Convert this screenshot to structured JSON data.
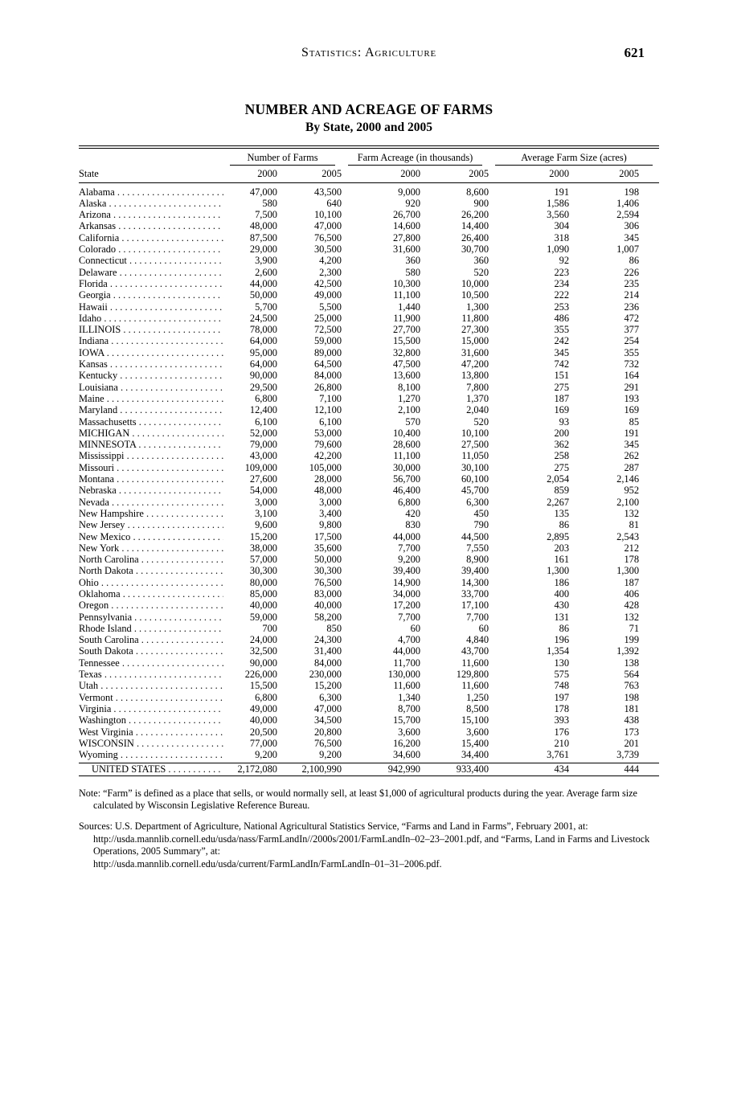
{
  "header": {
    "title": "Statistics: Agriculture",
    "page_number": "621"
  },
  "title": {
    "line1": "NUMBER AND ACREAGE OF FARMS",
    "line2": "By State, 2000 and 2005"
  },
  "table": {
    "state_header": "State",
    "group_headers": [
      "Number of Farms",
      "Farm Acreage (in thousands)",
      "Average Farm Size (acres)"
    ],
    "year_headers": [
      "2000",
      "2005",
      "2000",
      "2005",
      "2000",
      "2005"
    ],
    "rows": [
      {
        "state": "Alabama",
        "values": [
          "47,000",
          "43,500",
          "9,000",
          "8,600",
          "191",
          "198"
        ]
      },
      {
        "state": "Alaska",
        "values": [
          "580",
          "640",
          "920",
          "900",
          "1,586",
          "1,406"
        ]
      },
      {
        "state": "Arizona",
        "values": [
          "7,500",
          "10,100",
          "26,700",
          "26,200",
          "3,560",
          "2,594"
        ]
      },
      {
        "state": "Arkansas",
        "values": [
          "48,000",
          "47,000",
          "14,600",
          "14,400",
          "304",
          "306"
        ]
      },
      {
        "state": "California",
        "values": [
          "87,500",
          "76,500",
          "27,800",
          "26,400",
          "318",
          "345"
        ]
      },
      {
        "state": "Colorado",
        "values": [
          "29,000",
          "30,500",
          "31,600",
          "30,700",
          "1,090",
          "1,007"
        ]
      },
      {
        "state": "Connecticut",
        "values": [
          "3,900",
          "4,200",
          "360",
          "360",
          "92",
          "86"
        ]
      },
      {
        "state": "Delaware",
        "values": [
          "2,600",
          "2,300",
          "580",
          "520",
          "223",
          "226"
        ]
      },
      {
        "state": "Florida",
        "values": [
          "44,000",
          "42,500",
          "10,300",
          "10,000",
          "234",
          "235"
        ]
      },
      {
        "state": "Georgia",
        "values": [
          "50,000",
          "49,000",
          "11,100",
          "10,500",
          "222",
          "214"
        ]
      },
      {
        "state": "Hawaii",
        "values": [
          "5,700",
          "5,500",
          "1,440",
          "1,300",
          "253",
          "236"
        ]
      },
      {
        "state": "Idaho",
        "values": [
          "24,500",
          "25,000",
          "11,900",
          "11,800",
          "486",
          "472"
        ]
      },
      {
        "state": "ILLINOIS",
        "values": [
          "78,000",
          "72,500",
          "27,700",
          "27,300",
          "355",
          "377"
        ]
      },
      {
        "state": "Indiana",
        "values": [
          "64,000",
          "59,000",
          "15,500",
          "15,000",
          "242",
          "254"
        ]
      },
      {
        "state": "IOWA",
        "values": [
          "95,000",
          "89,000",
          "32,800",
          "31,600",
          "345",
          "355"
        ]
      },
      {
        "state": "Kansas",
        "values": [
          "64,000",
          "64,500",
          "47,500",
          "47,200",
          "742",
          "732"
        ]
      },
      {
        "state": "Kentucky",
        "values": [
          "90,000",
          "84,000",
          "13,600",
          "13,800",
          "151",
          "164"
        ]
      },
      {
        "state": "Louisiana",
        "values": [
          "29,500",
          "26,800",
          "8,100",
          "7,800",
          "275",
          "291"
        ]
      },
      {
        "state": "Maine",
        "values": [
          "6,800",
          "7,100",
          "1,270",
          "1,370",
          "187",
          "193"
        ]
      },
      {
        "state": "Maryland",
        "values": [
          "12,400",
          "12,100",
          "2,100",
          "2,040",
          "169",
          "169"
        ]
      },
      {
        "state": "Massachusetts",
        "values": [
          "6,100",
          "6,100",
          "570",
          "520",
          "93",
          "85"
        ]
      },
      {
        "state": "MICHIGAN",
        "values": [
          "52,000",
          "53,000",
          "10,400",
          "10,100",
          "200",
          "191"
        ]
      },
      {
        "state": "MINNESOTA",
        "values": [
          "79,000",
          "79,600",
          "28,600",
          "27,500",
          "362",
          "345"
        ]
      },
      {
        "state": "Mississippi",
        "values": [
          "43,000",
          "42,200",
          "11,100",
          "11,050",
          "258",
          "262"
        ]
      },
      {
        "state": "Missouri",
        "values": [
          "109,000",
          "105,000",
          "30,000",
          "30,100",
          "275",
          "287"
        ]
      },
      {
        "state": "Montana",
        "values": [
          "27,600",
          "28,000",
          "56,700",
          "60,100",
          "2,054",
          "2,146"
        ]
      },
      {
        "state": "Nebraska",
        "values": [
          "54,000",
          "48,000",
          "46,400",
          "45,700",
          "859",
          "952"
        ]
      },
      {
        "state": "Nevada",
        "values": [
          "3,000",
          "3,000",
          "6,800",
          "6,300",
          "2,267",
          "2,100"
        ]
      },
      {
        "state": "New Hampshire",
        "values": [
          "3,100",
          "3,400",
          "420",
          "450",
          "135",
          "132"
        ]
      },
      {
        "state": "New Jersey",
        "values": [
          "9,600",
          "9,800",
          "830",
          "790",
          "86",
          "81"
        ]
      },
      {
        "state": "New Mexico",
        "values": [
          "15,200",
          "17,500",
          "44,000",
          "44,500",
          "2,895",
          "2,543"
        ]
      },
      {
        "state": "New York",
        "values": [
          "38,000",
          "35,600",
          "7,700",
          "7,550",
          "203",
          "212"
        ]
      },
      {
        "state": "North Carolina",
        "values": [
          "57,000",
          "50,000",
          "9,200",
          "8,900",
          "161",
          "178"
        ]
      },
      {
        "state": "North Dakota",
        "values": [
          "30,300",
          "30,300",
          "39,400",
          "39,400",
          "1,300",
          "1,300"
        ]
      },
      {
        "state": "Ohio",
        "values": [
          "80,000",
          "76,500",
          "14,900",
          "14,300",
          "186",
          "187"
        ]
      },
      {
        "state": "Oklahoma",
        "values": [
          "85,000",
          "83,000",
          "34,000",
          "33,700",
          "400",
          "406"
        ]
      },
      {
        "state": "Oregon",
        "values": [
          "40,000",
          "40,000",
          "17,200",
          "17,100",
          "430",
          "428"
        ]
      },
      {
        "state": "Pennsylvania",
        "values": [
          "59,000",
          "58,200",
          "7,700",
          "7,700",
          "131",
          "132"
        ]
      },
      {
        "state": "Rhode Island",
        "values": [
          "700",
          "850",
          "60",
          "60",
          "86",
          "71"
        ]
      },
      {
        "state": "South Carolina",
        "values": [
          "24,000",
          "24,300",
          "4,700",
          "4,840",
          "196",
          "199"
        ]
      },
      {
        "state": "South Dakota",
        "values": [
          "32,500",
          "31,400",
          "44,000",
          "43,700",
          "1,354",
          "1,392"
        ]
      },
      {
        "state": "Tennessee",
        "values": [
          "90,000",
          "84,000",
          "11,700",
          "11,600",
          "130",
          "138"
        ]
      },
      {
        "state": "Texas",
        "values": [
          "226,000",
          "230,000",
          "130,000",
          "129,800",
          "575",
          "564"
        ]
      },
      {
        "state": "Utah",
        "values": [
          "15,500",
          "15,200",
          "11,600",
          "11,600",
          "748",
          "763"
        ]
      },
      {
        "state": "Vermont",
        "values": [
          "6,800",
          "6,300",
          "1,340",
          "1,250",
          "197",
          "198"
        ]
      },
      {
        "state": "Virginia",
        "values": [
          "49,000",
          "47,000",
          "8,700",
          "8,500",
          "178",
          "181"
        ]
      },
      {
        "state": "Washington",
        "values": [
          "40,000",
          "34,500",
          "15,700",
          "15,100",
          "393",
          "438"
        ]
      },
      {
        "state": "West Virginia",
        "values": [
          "20,500",
          "20,800",
          "3,600",
          "3,600",
          "176",
          "173"
        ]
      },
      {
        "state": "WISCONSIN",
        "bold": true,
        "values": [
          "77,000",
          "76,500",
          "16,200",
          "15,400",
          "210",
          "201"
        ]
      },
      {
        "state": "Wyoming",
        "values": [
          "9,200",
          "9,200",
          "34,600",
          "34,400",
          "3,761",
          "3,739"
        ]
      }
    ],
    "total_row": {
      "state": "UNITED STATES",
      "values": [
        "2,172,080",
        "2,100,990",
        "942,990",
        "933,400",
        "434",
        "444"
      ]
    }
  },
  "notes": {
    "note": "Note: “Farm” is defined as a place that sells, or would normally sell, at least $1,000 of agricultural products during the year.  Average farm size calculated by Wisconsin Legislative Reference Bureau.",
    "sources": "Sources: U.S. Department of Agriculture, National Agricultural Statistics Service, “Farms and Land in Farms”, February 2001, at: http://usda.mannlib.cornell.edu/usda/nass/FarmLandIn//2000s/2001/FarmLandIn–02–23–2001.pdf, and “Farms, Land in Farms and Livestock Operations, 2005 Summary”, at:\nhttp://usda.mannlib.cornell.edu/usda/current/FarmLandIn/FarmLandIn–01–31–2006.pdf."
  }
}
